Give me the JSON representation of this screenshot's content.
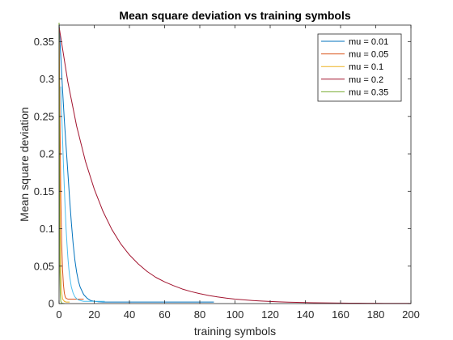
{
  "chart_data": {
    "type": "line",
    "title": "Mean square deviation vs training symbols",
    "xlabel": "training symbols",
    "ylabel": "Mean square deviation",
    "xlim": [
      0,
      200
    ],
    "ylim": [
      0,
      0.372
    ],
    "xticks": [
      0,
      20,
      40,
      60,
      80,
      100,
      120,
      140,
      160,
      180,
      200
    ],
    "yticks": [
      0,
      0.05,
      0.1,
      0.15,
      0.2,
      0.25,
      0.3,
      0.35
    ],
    "ytick_labels": [
      "0",
      "0.05",
      "0.1",
      "0.15",
      "0.2",
      "0.25",
      "0.3",
      "0.35"
    ],
    "grid": false,
    "legend_position": "top-right",
    "series": [
      {
        "name": "mu = 0.01",
        "color": "#0072BD",
        "x": [
          0,
          1,
          2,
          3,
          4,
          5,
          6,
          7,
          8,
          9,
          10,
          11,
          12,
          14,
          16,
          18,
          20,
          22,
          25,
          30,
          40,
          50,
          60,
          70,
          80,
          88
        ],
        "y": [
          0.375,
          0.33,
          0.285,
          0.245,
          0.21,
          0.175,
          0.14,
          0.108,
          0.08,
          0.058,
          0.042,
          0.03,
          0.022,
          0.012,
          0.007,
          0.004,
          0.003,
          0.0025,
          0.002,
          0.002,
          0.002,
          0.002,
          0.002,
          0.002,
          0.002,
          0.002
        ]
      },
      {
        "name": "mu = 0.05",
        "color": "#D95319",
        "x": [
          0,
          0.5,
          1,
          1.5,
          2,
          2.5,
          3,
          3.5,
          4,
          5,
          6,
          8,
          10,
          12,
          14
        ],
        "y": [
          0.375,
          0.25,
          0.14,
          0.08,
          0.045,
          0.025,
          0.014,
          0.009,
          0.007,
          0.006,
          0.006,
          0.006,
          0.006,
          0.006,
          0.006
        ]
      },
      {
        "name": "mu = 0.1",
        "color": "#EDB120",
        "x": [
          0,
          0.3,
          0.6,
          1,
          1.5,
          2,
          3,
          4,
          5,
          6
        ],
        "y": [
          0.375,
          0.2,
          0.1,
          0.04,
          0.015,
          0.006,
          0.003,
          0.002,
          0.002,
          0.002
        ]
      },
      {
        "name": "mu = 0.2",
        "color": "#A2142F",
        "x": [
          0,
          5,
          10,
          15,
          20,
          25,
          30,
          35,
          40,
          45,
          50,
          55,
          60,
          65,
          70,
          75,
          80,
          85,
          90,
          95,
          100,
          105,
          110,
          115,
          120,
          125,
          130,
          135,
          140,
          145,
          150,
          155,
          160,
          165,
          170,
          175,
          180,
          185,
          190,
          195,
          200
        ],
        "y": [
          0.37,
          0.296,
          0.237,
          0.19,
          0.153,
          0.123,
          0.099,
          0.08,
          0.065,
          0.053,
          0.043,
          0.035,
          0.029,
          0.024,
          0.0195,
          0.016,
          0.0132,
          0.0108,
          0.0089,
          0.0073,
          0.006,
          0.005,
          0.0041,
          0.0034,
          0.0028,
          0.0023,
          0.0019,
          0.0016,
          0.0013,
          0.0011,
          0.0009,
          0.0008,
          0.0007,
          0.0006,
          0.0005,
          0.0004,
          0.0004,
          0.0003,
          0.0003,
          0.0003,
          0.0003
        ]
      },
      {
        "name": "mu = 0.35",
        "color": "#77AC30",
        "x": [
          0,
          0.2,
          0.4,
          0.7,
          1,
          1.5,
          2,
          3
        ],
        "y": [
          0.375,
          0.15,
          0.05,
          0.012,
          0.003,
          0.0008,
          0.0003,
          0.0002
        ]
      },
      {
        "name": "",
        "color": "#4DBEEE",
        "x": [
          1,
          1.5,
          2,
          2.5,
          3,
          3.5,
          4,
          4.5,
          5,
          5.5,
          6,
          7,
          8,
          9,
          10,
          11,
          12,
          13,
          14,
          15,
          18,
          22,
          26
        ],
        "y": [
          0.29,
          0.255,
          0.22,
          0.185,
          0.155,
          0.125,
          0.1,
          0.08,
          0.062,
          0.048,
          0.037,
          0.022,
          0.014,
          0.009,
          0.0065,
          0.005,
          0.004,
          0.0035,
          0.003,
          0.003,
          0.003,
          0.003,
          0.003
        ]
      }
    ]
  }
}
